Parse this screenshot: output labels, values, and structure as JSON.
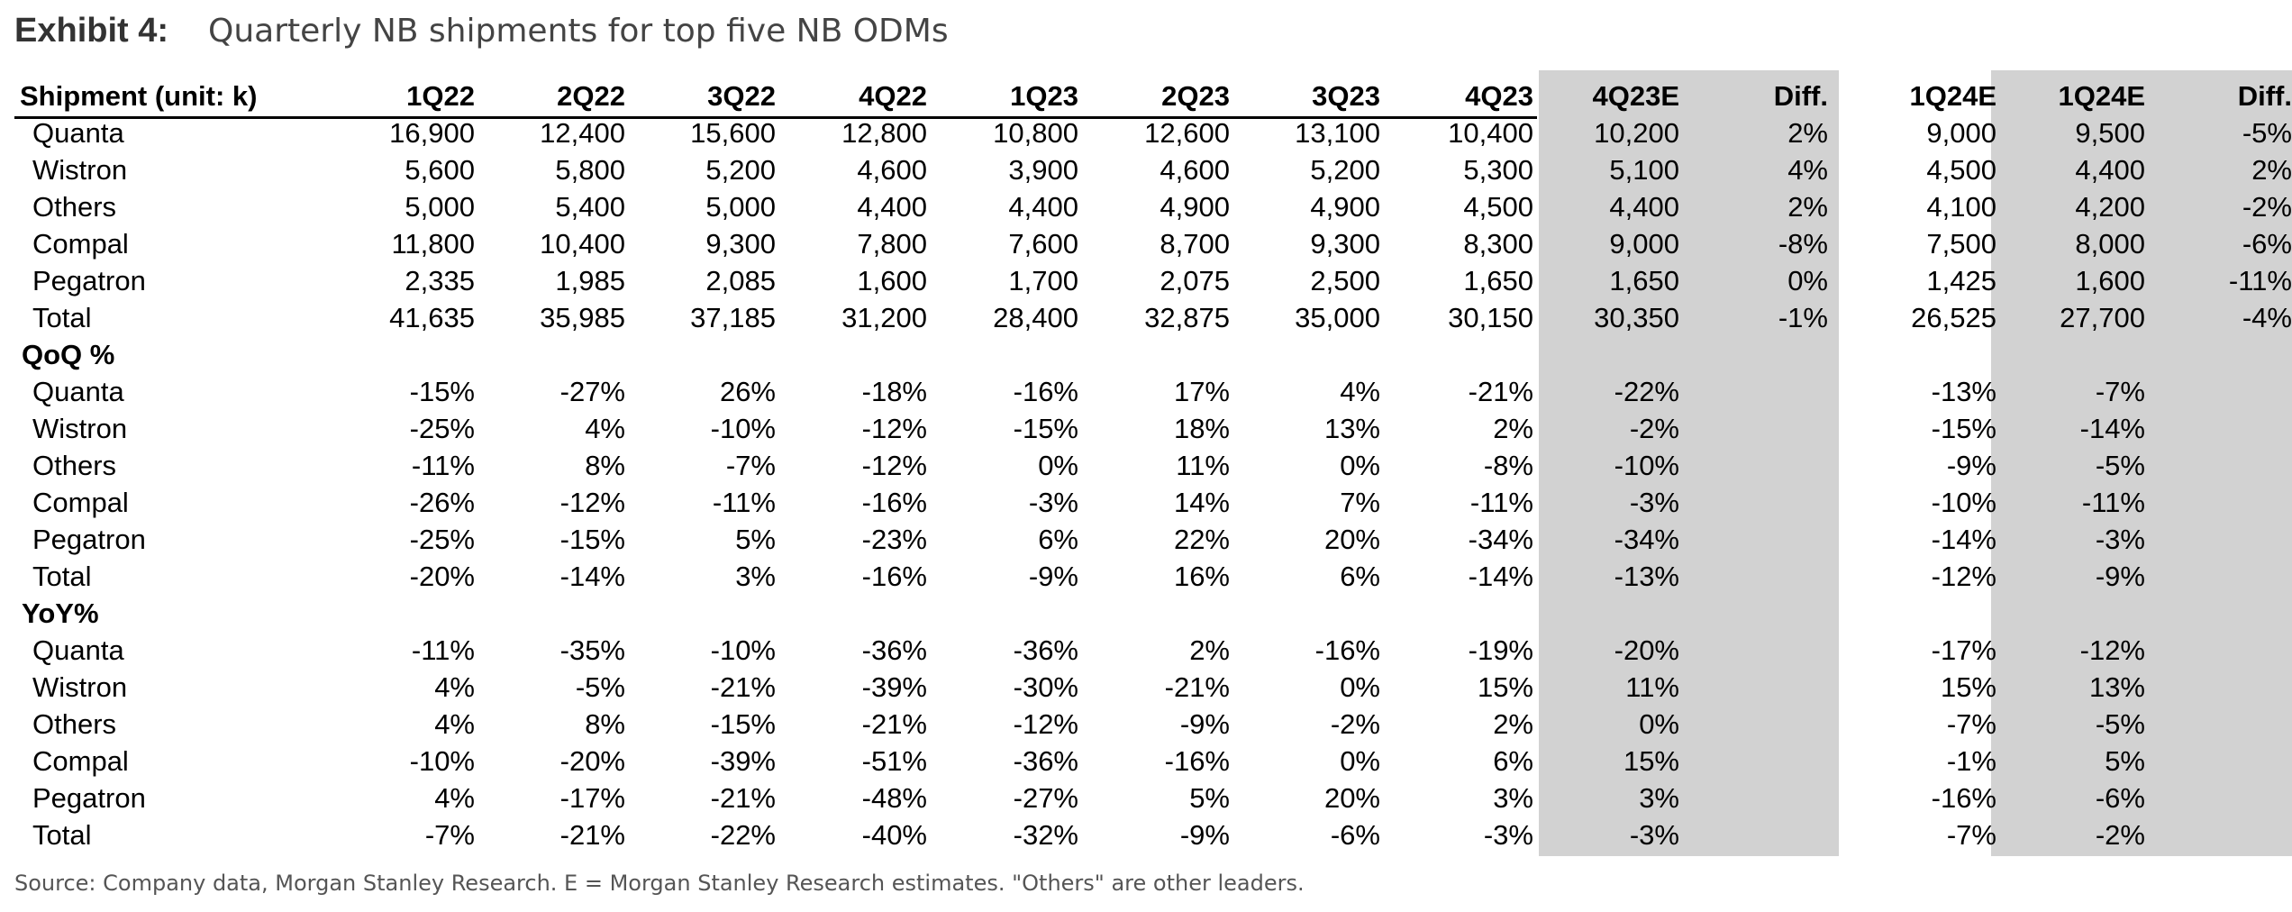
{
  "title": {
    "exhibit": "Exhibit 4:",
    "subtitle": "Quarterly NB shipments for top five NB ODMs"
  },
  "table": {
    "header_label": "Shipment (unit: k)",
    "columns": [
      "1Q22",
      "2Q22",
      "3Q22",
      "4Q22",
      "1Q23",
      "2Q23",
      "3Q23",
      "4Q23",
      "4Q23E",
      "Diff.",
      "1Q24E",
      "1Q24E",
      "Diff."
    ],
    "sections": [
      {
        "label": "",
        "rows": [
          {
            "name": "Quanta",
            "cells": [
              "16,900",
              "12,400",
              "15,600",
              "12,800",
              "10,800",
              "12,600",
              "13,100",
              "10,400",
              "10,200",
              "2%",
              "9,000",
              "9,500",
              "-5%"
            ]
          },
          {
            "name": "Wistron",
            "cells": [
              "5,600",
              "5,800",
              "5,200",
              "4,600",
              "3,900",
              "4,600",
              "5,200",
              "5,300",
              "5,100",
              "4%",
              "4,500",
              "4,400",
              "2%"
            ]
          },
          {
            "name": "Others",
            "cells": [
              "5,000",
              "5,400",
              "5,000",
              "4,400",
              "4,400",
              "4,900",
              "4,900",
              "4,500",
              "4,400",
              "2%",
              "4,100",
              "4,200",
              "-2%"
            ]
          },
          {
            "name": "Compal",
            "cells": [
              "11,800",
              "10,400",
              "9,300",
              "7,800",
              "7,600",
              "8,700",
              "9,300",
              "8,300",
              "9,000",
              "-8%",
              "7,500",
              "8,000",
              "-6%"
            ]
          },
          {
            "name": "Pegatron",
            "cells": [
              "2,335",
              "1,985",
              "2,085",
              "1,600",
              "1,700",
              "2,075",
              "2,500",
              "1,650",
              "1,650",
              "0%",
              "1,425",
              "1,600",
              "-11%"
            ]
          },
          {
            "name": "Total",
            "cells": [
              "41,635",
              "35,985",
              "37,185",
              "31,200",
              "28,400",
              "32,875",
              "35,000",
              "30,150",
              "30,350",
              "-1%",
              "26,525",
              "27,700",
              "-4%"
            ]
          }
        ]
      },
      {
        "label": "QoQ %",
        "rows": [
          {
            "name": "Quanta",
            "cells": [
              "-15%",
              "-27%",
              "26%",
              "-18%",
              "-16%",
              "17%",
              "4%",
              "-21%",
              "-22%",
              "",
              "-13%",
              "-7%",
              ""
            ]
          },
          {
            "name": "Wistron",
            "cells": [
              "-25%",
              "4%",
              "-10%",
              "-12%",
              "-15%",
              "18%",
              "13%",
              "2%",
              "-2%",
              "",
              "-15%",
              "-14%",
              ""
            ]
          },
          {
            "name": "Others",
            "cells": [
              "-11%",
              "8%",
              "-7%",
              "-12%",
              "0%",
              "11%",
              "0%",
              "-8%",
              "-10%",
              "",
              "-9%",
              "-5%",
              ""
            ]
          },
          {
            "name": "Compal",
            "cells": [
              "-26%",
              "-12%",
              "-11%",
              "-16%",
              "-3%",
              "14%",
              "7%",
              "-11%",
              "-3%",
              "",
              "-10%",
              "-11%",
              ""
            ]
          },
          {
            "name": "Pegatron",
            "cells": [
              "-25%",
              "-15%",
              "5%",
              "-23%",
              "6%",
              "22%",
              "20%",
              "-34%",
              "-34%",
              "",
              "-14%",
              "-3%",
              ""
            ]
          },
          {
            "name": "Total",
            "cells": [
              "-20%",
              "-14%",
              "3%",
              "-16%",
              "-9%",
              "16%",
              "6%",
              "-14%",
              "-13%",
              "",
              "-12%",
              "-9%",
              ""
            ]
          }
        ]
      },
      {
        "label": "YoY%",
        "rows": [
          {
            "name": "Quanta",
            "cells": [
              "-11%",
              "-35%",
              "-10%",
              "-36%",
              "-36%",
              "2%",
              "-16%",
              "-19%",
              "-20%",
              "",
              "-17%",
              "-12%",
              ""
            ]
          },
          {
            "name": "Wistron",
            "cells": [
              "4%",
              "-5%",
              "-21%",
              "-39%",
              "-30%",
              "-21%",
              "0%",
              "15%",
              "11%",
              "",
              "15%",
              "13%",
              ""
            ]
          },
          {
            "name": "Others",
            "cells": [
              "4%",
              "8%",
              "-15%",
              "-21%",
              "-12%",
              "-9%",
              "-2%",
              "2%",
              "0%",
              "",
              "-7%",
              "-5%",
              ""
            ]
          },
          {
            "name": "Compal",
            "cells": [
              "-10%",
              "-20%",
              "-39%",
              "-51%",
              "-36%",
              "-16%",
              "0%",
              "6%",
              "15%",
              "",
              "-1%",
              "5%",
              ""
            ]
          },
          {
            "name": "Pegatron",
            "cells": [
              "4%",
              "-17%",
              "-21%",
              "-48%",
              "-27%",
              "5%",
              "20%",
              "3%",
              "3%",
              "",
              "-16%",
              "-6%",
              ""
            ]
          },
          {
            "name": "Total",
            "cells": [
              "-7%",
              "-21%",
              "-22%",
              "-40%",
              "-32%",
              "-9%",
              "-6%",
              "-3%",
              "-3%",
              "",
              "-7%",
              "-2%",
              ""
            ]
          }
        ]
      }
    ]
  },
  "source": "Source: Company data, Morgan Stanley Research. E = Morgan Stanley Research estimates. \"Others\" are other leaders."
}
